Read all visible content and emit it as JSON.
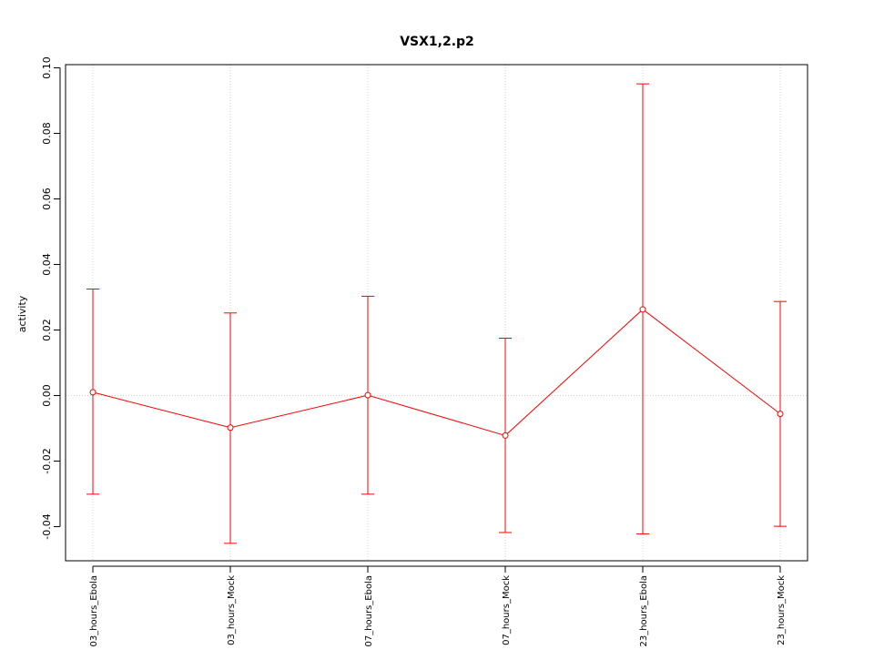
{
  "chart_data": {
    "type": "line",
    "title": "VSX1,2.p2",
    "xlabel": "",
    "ylabel": "activity",
    "categories": [
      "03_hours_Ebola",
      "03_hours_Mock",
      "07_hours_Ebola",
      "07_hours_Mock",
      "23_hours_Ebola",
      "23_hours_Mock"
    ],
    "series": [
      {
        "values": [
          0.001,
          -0.0098,
          0.0001,
          -0.0122,
          0.0263,
          -0.0056
        ],
        "lower": [
          -0.0301,
          -0.0451,
          -0.0301,
          -0.0418,
          -0.0422,
          -0.0399
        ],
        "upper": [
          0.0325,
          0.0252,
          0.0303,
          0.0175,
          0.0951,
          0.0287
        ],
        "color": "#ff0000"
      }
    ],
    "ylim": [
      -0.05,
      0.1
    ],
    "yticks": [
      -0.04,
      -0.02,
      0.0,
      0.02,
      0.04,
      0.06,
      0.08,
      0.1
    ],
    "ytick_labels": [
      "-0.04",
      "-0.02",
      "0.00",
      "0.02",
      "0.04",
      "0.06",
      "0.08",
      "0.10"
    ],
    "grid": true,
    "grid_color": "#d3d3d3",
    "zero_line": true
  }
}
